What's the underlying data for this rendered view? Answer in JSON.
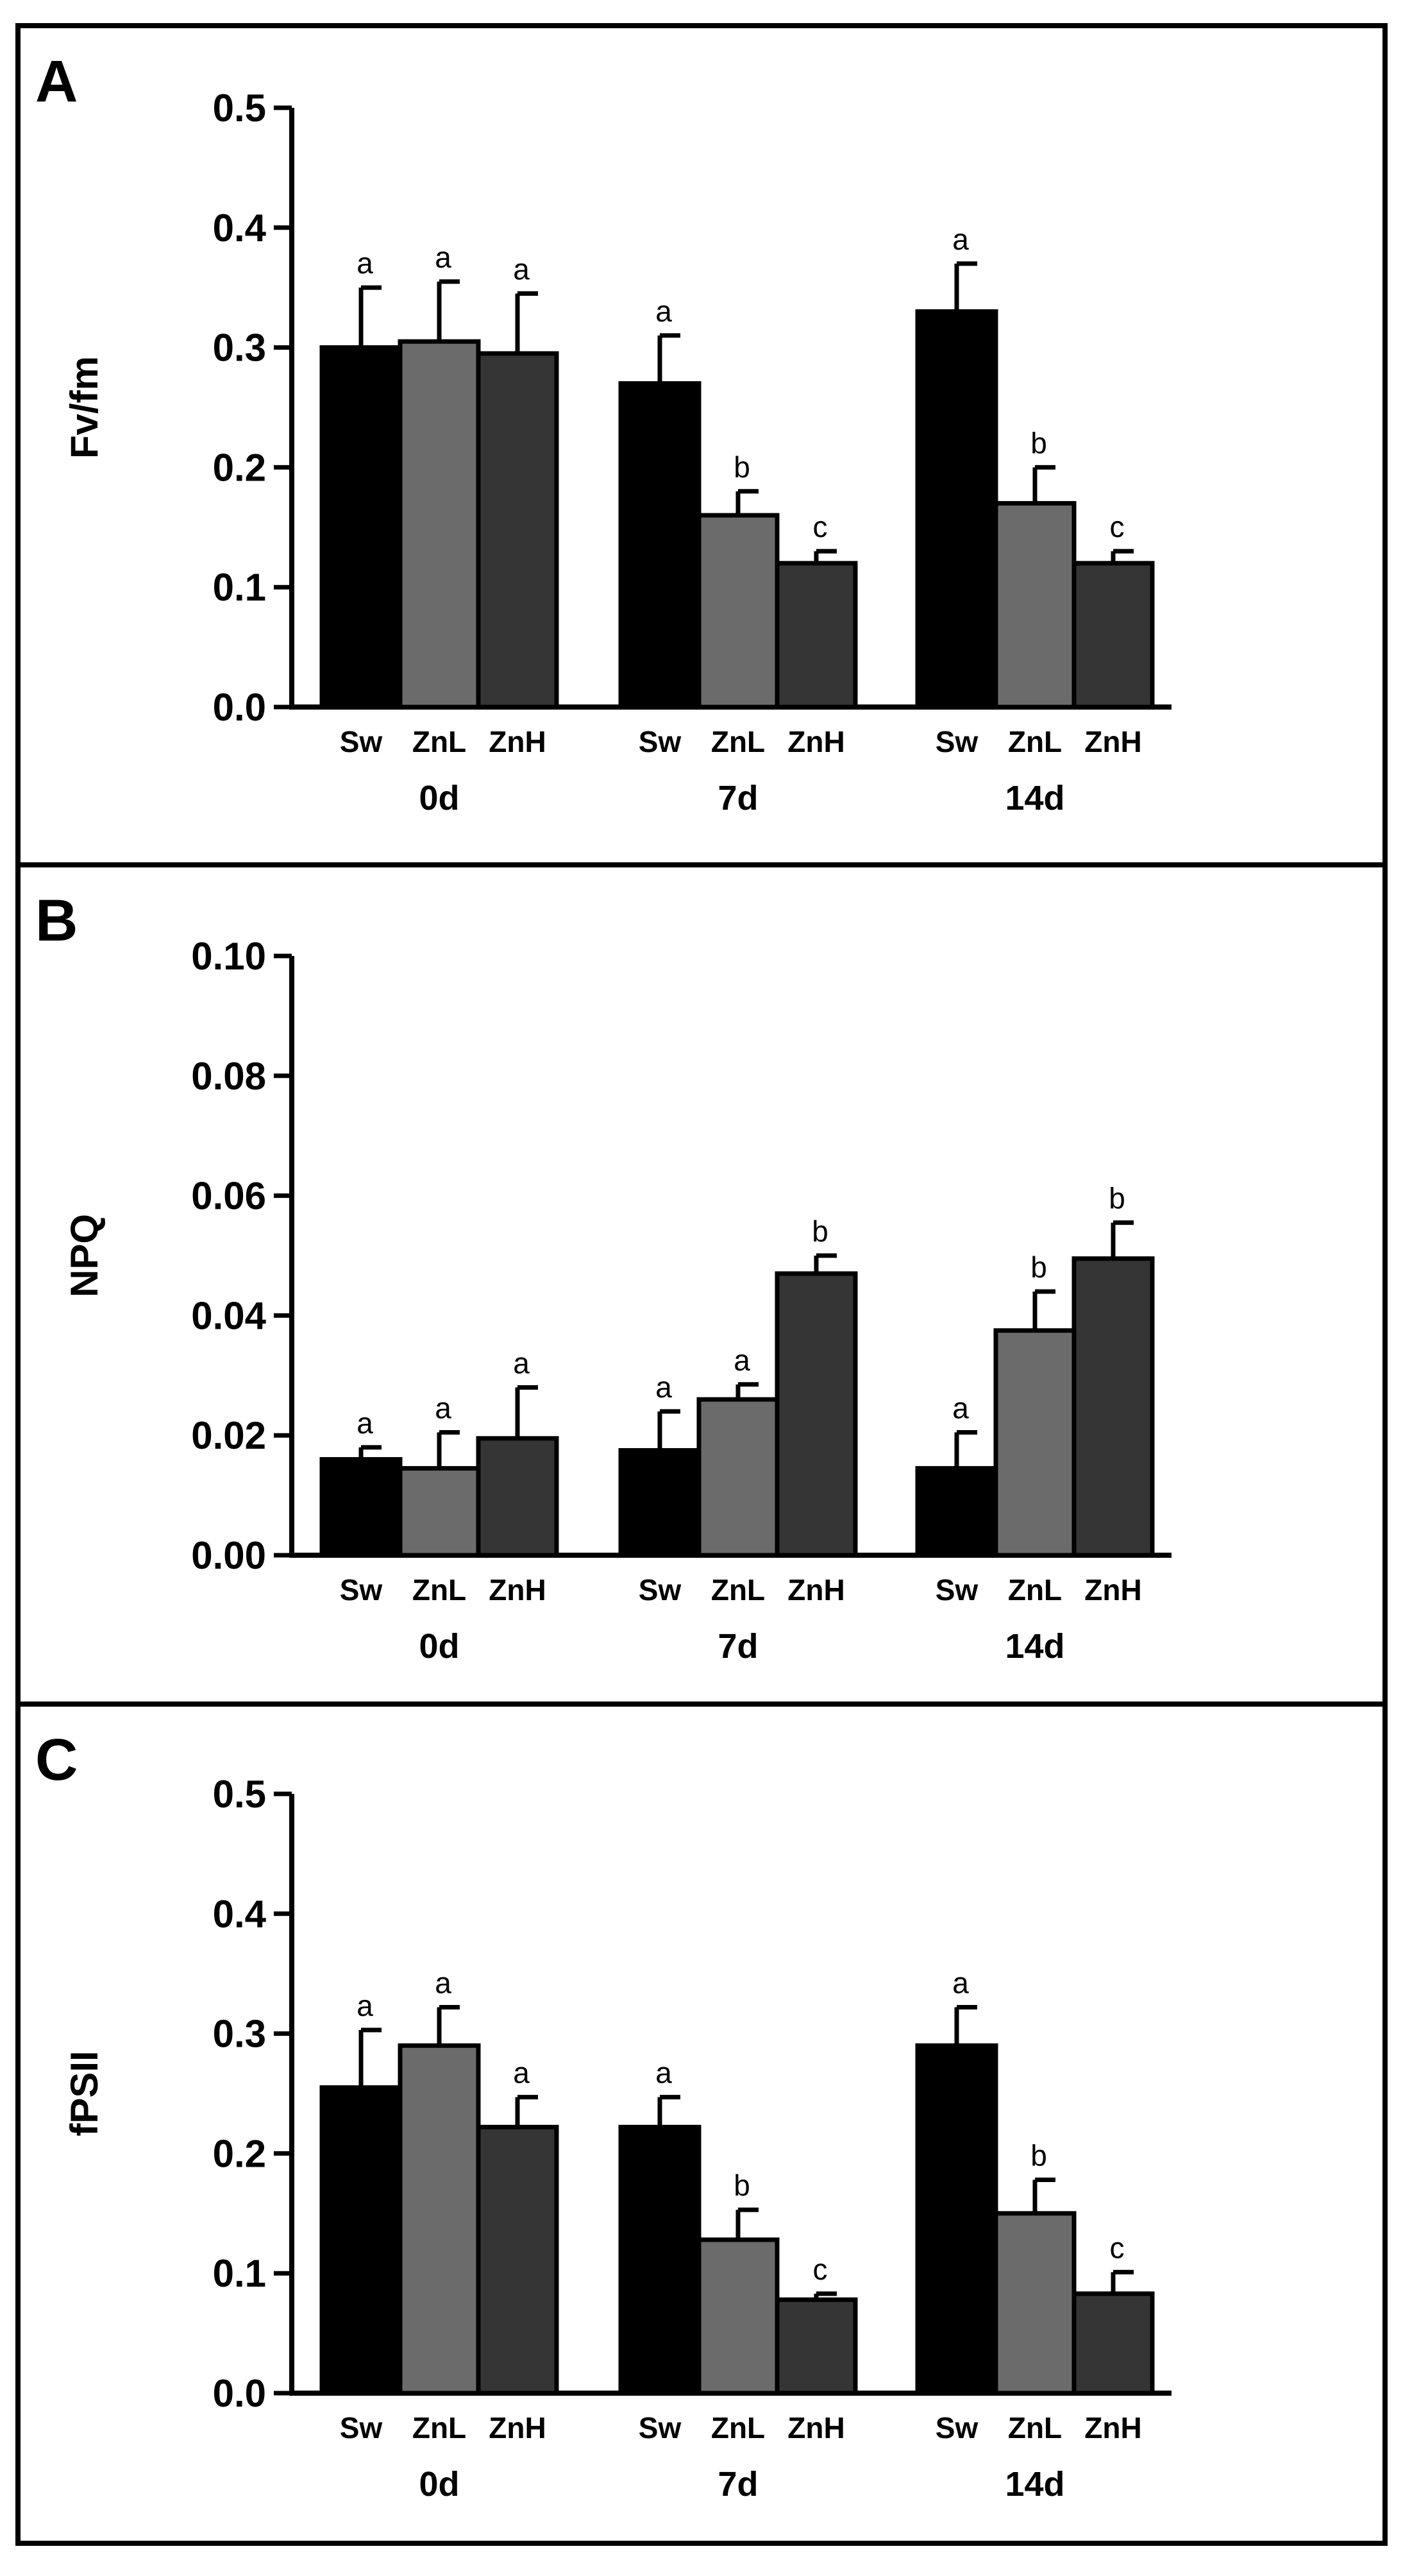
{
  "figure": {
    "colors": {
      "Sw": "#000000",
      "ZnL": "#6b6b6b",
      "ZnH": "#353535",
      "frame": "#000000"
    }
  },
  "chart_data": [
    {
      "type": "bar",
      "panel": "A",
      "ylabel": "Fv/fm",
      "ylim": [
        0,
        0.5
      ],
      "yticks": [
        "0.0",
        "0.1",
        "0.2",
        "0.3",
        "0.4",
        "0.5"
      ],
      "groups": [
        "0d",
        "7d",
        "14d"
      ],
      "categories": [
        "Sw",
        "ZnL",
        "ZnH"
      ],
      "series": [
        {
          "name": "Sw",
          "values": [
            0.3,
            0.27,
            0.33
          ],
          "errors": [
            0.05,
            0.04,
            0.04
          ],
          "labels": [
            "a",
            "a",
            "a"
          ]
        },
        {
          "name": "ZnL",
          "values": [
            0.305,
            0.16,
            0.17
          ],
          "errors": [
            0.05,
            0.02,
            0.03
          ],
          "labels": [
            "a",
            "b",
            "b"
          ]
        },
        {
          "name": "ZnH",
          "values": [
            0.295,
            0.12,
            0.12
          ],
          "errors": [
            0.05,
            0.01,
            0.01
          ],
          "labels": [
            "a",
            "c",
            "c"
          ]
        }
      ]
    },
    {
      "type": "bar",
      "panel": "B",
      "ylabel": "NPQ",
      "ylim": [
        0,
        0.1
      ],
      "yticks": [
        "0.00",
        "0.02",
        "0.04",
        "0.06",
        "0.08",
        "0.10"
      ],
      "groups": [
        "0d",
        "7d",
        "14d"
      ],
      "categories": [
        "Sw",
        "ZnL",
        "ZnH"
      ],
      "series": [
        {
          "name": "Sw",
          "values": [
            0.016,
            0.0175,
            0.0145
          ],
          "errors": [
            0.002,
            0.0065,
            0.006
          ],
          "labels": [
            "a",
            "a",
            "a"
          ]
        },
        {
          "name": "ZnL",
          "values": [
            0.0145,
            0.026,
            0.0375
          ],
          "errors": [
            0.006,
            0.0025,
            0.0065
          ],
          "labels": [
            "a",
            "a",
            "b"
          ]
        },
        {
          "name": "ZnH",
          "values": [
            0.0195,
            0.047,
            0.0495
          ],
          "errors": [
            0.0085,
            0.003,
            0.006
          ],
          "labels": [
            "a",
            "b",
            "b"
          ]
        }
      ]
    },
    {
      "type": "bar",
      "panel": "C",
      "ylabel": "fPSII",
      "ylim": [
        0,
        0.5
      ],
      "yticks": [
        "0.0",
        "0.1",
        "0.2",
        "0.3",
        "0.4",
        "0.5"
      ],
      "groups": [
        "0d",
        "7d",
        "14d"
      ],
      "categories": [
        "Sw",
        "ZnL",
        "ZnH"
      ],
      "series": [
        {
          "name": "Sw",
          "values": [
            0.255,
            0.222,
            0.29
          ],
          "errors": [
            0.048,
            0.025,
            0.032
          ],
          "labels": [
            "a",
            "a",
            "a"
          ]
        },
        {
          "name": "ZnL",
          "values": [
            0.29,
            0.128,
            0.15
          ],
          "errors": [
            0.032,
            0.025,
            0.028
          ],
          "labels": [
            "a",
            "b",
            "b"
          ]
        },
        {
          "name": "ZnH",
          "values": [
            0.222,
            0.078,
            0.083
          ],
          "errors": [
            0.025,
            0.005,
            0.018
          ],
          "labels": [
            "a",
            "c",
            "c"
          ]
        }
      ]
    }
  ]
}
